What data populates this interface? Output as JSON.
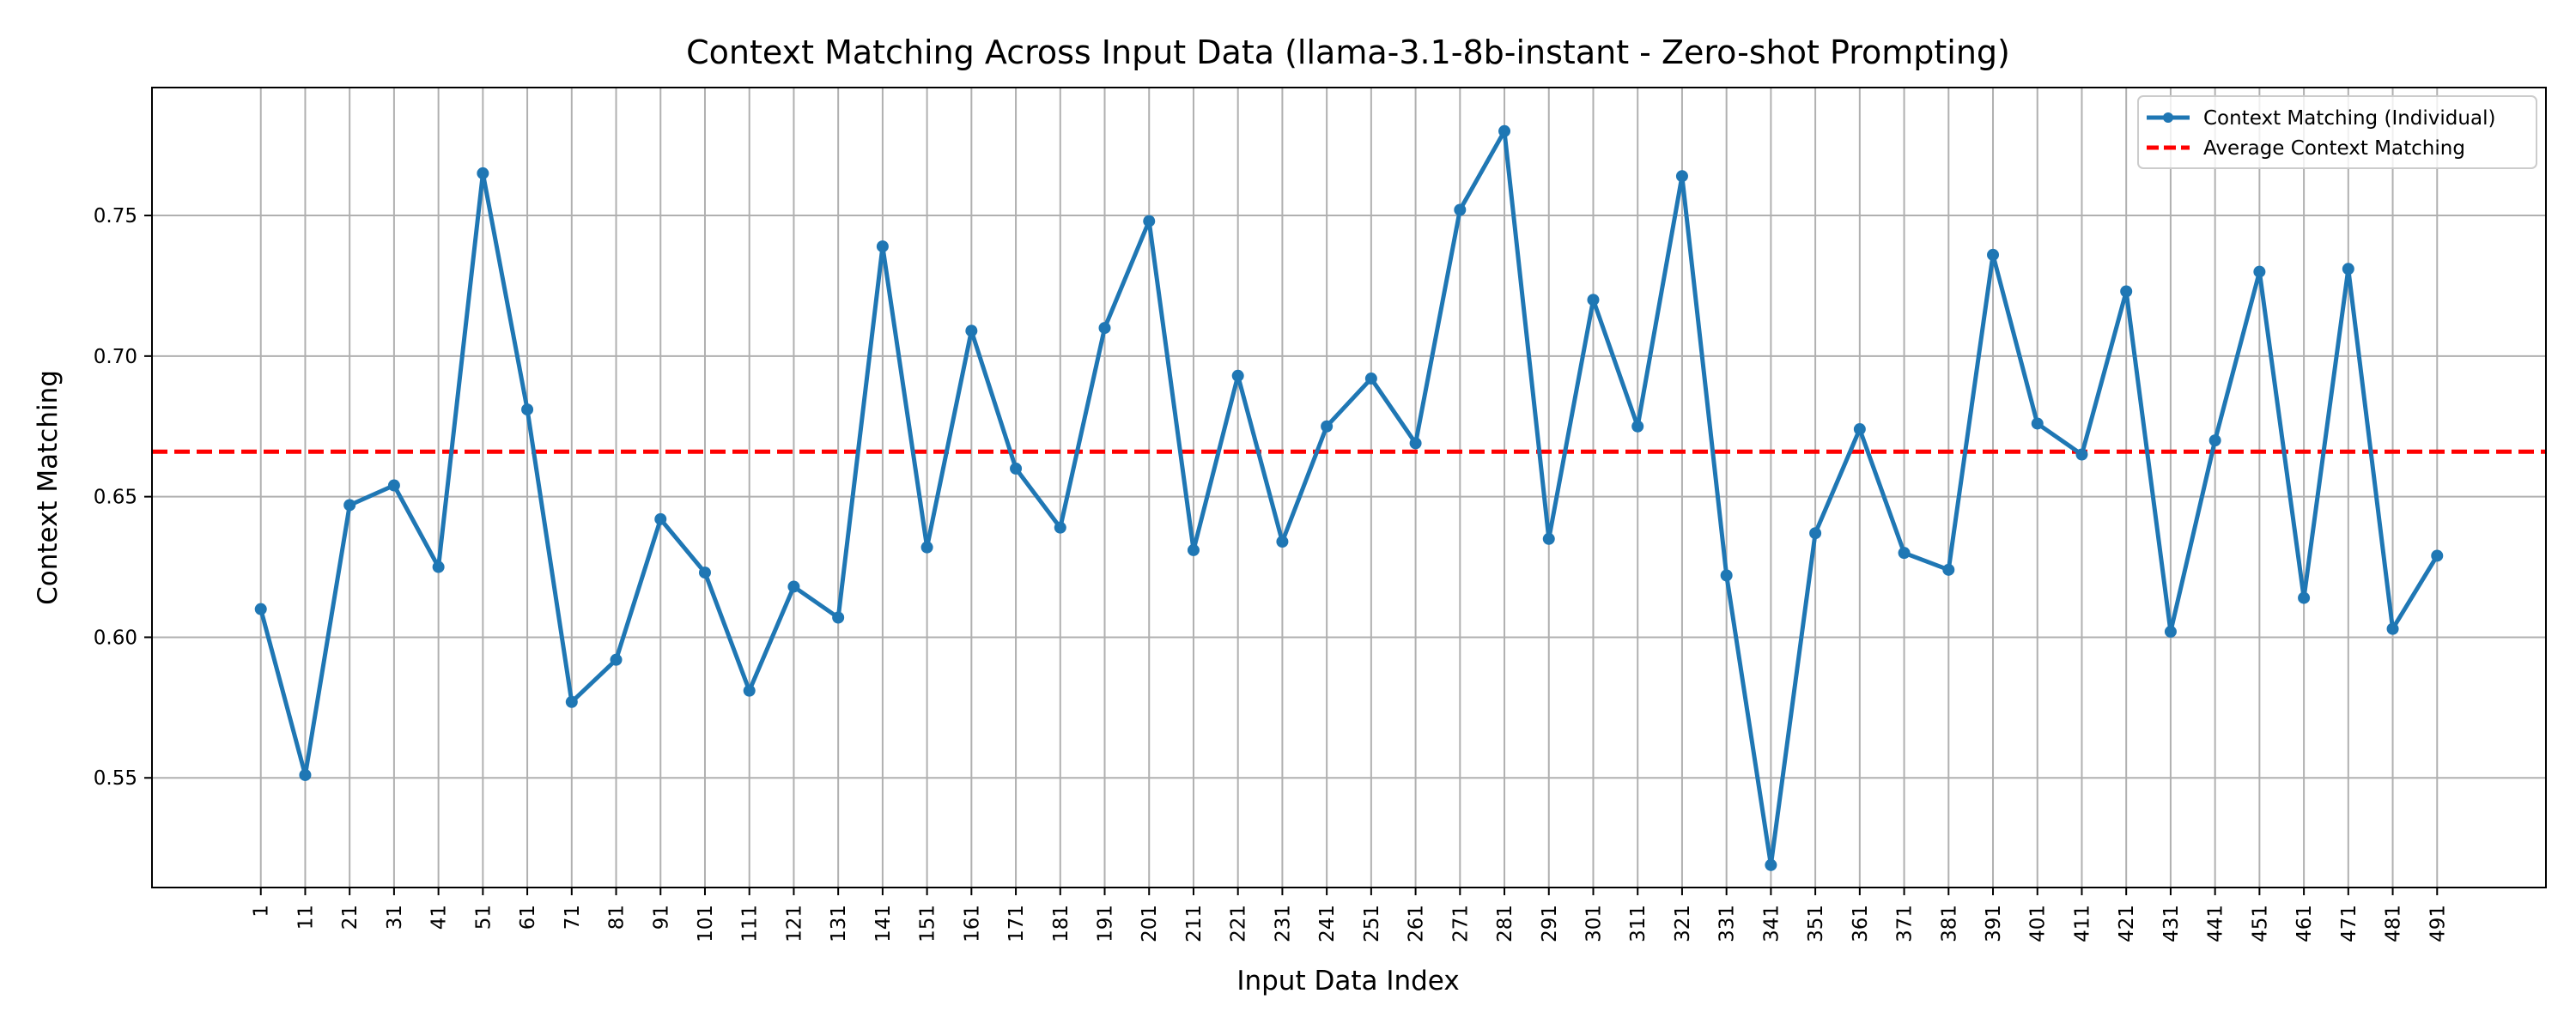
{
  "chart_data": {
    "type": "line",
    "title": "Context Matching Across Input Data (llama-3.1-8b-instant - Zero-shot Prompting)",
    "xlabel": "Input Data Index",
    "ylabel": "Context Matching",
    "x": [
      1,
      11,
      21,
      31,
      41,
      51,
      61,
      71,
      81,
      91,
      101,
      111,
      121,
      131,
      141,
      151,
      161,
      171,
      181,
      191,
      201,
      211,
      221,
      231,
      241,
      251,
      261,
      271,
      281,
      291,
      301,
      311,
      321,
      331,
      341,
      351,
      361,
      371,
      381,
      391,
      401,
      411,
      421,
      431,
      441,
      451,
      461,
      471,
      481,
      491
    ],
    "series": [
      {
        "name": "Context Matching (Individual)",
        "color": "#1f77b4",
        "style": "solid-with-markers",
        "values": [
          0.61,
          0.551,
          0.647,
          0.654,
          0.625,
          0.765,
          0.681,
          0.577,
          0.592,
          0.642,
          0.623,
          0.581,
          0.618,
          0.607,
          0.739,
          0.632,
          0.709,
          0.66,
          0.639,
          0.71,
          0.748,
          0.631,
          0.693,
          0.634,
          0.675,
          0.692,
          0.669,
          0.752,
          0.78,
          0.635,
          0.72,
          0.675,
          0.764,
          0.622,
          0.519,
          0.637,
          0.674,
          0.63,
          0.624,
          0.736,
          0.676,
          0.665,
          0.723,
          0.602,
          0.67,
          0.73,
          0.614,
          0.731,
          0.603,
          0.629
        ]
      },
      {
        "name": "Average Context Matching",
        "color": "#ff0000",
        "style": "dashed",
        "value": 0.666
      }
    ],
    "yticks": [
      0.55,
      0.6,
      0.65,
      0.7,
      0.75
    ],
    "ytick_labels": [
      "0.55",
      "0.60",
      "0.65",
      "0.70",
      "0.75"
    ],
    "ylim": [
      0.511,
      0.7955
    ],
    "xlim": [
      -23.5,
      515.5
    ],
    "grid": true,
    "legend_position": "top-right"
  }
}
